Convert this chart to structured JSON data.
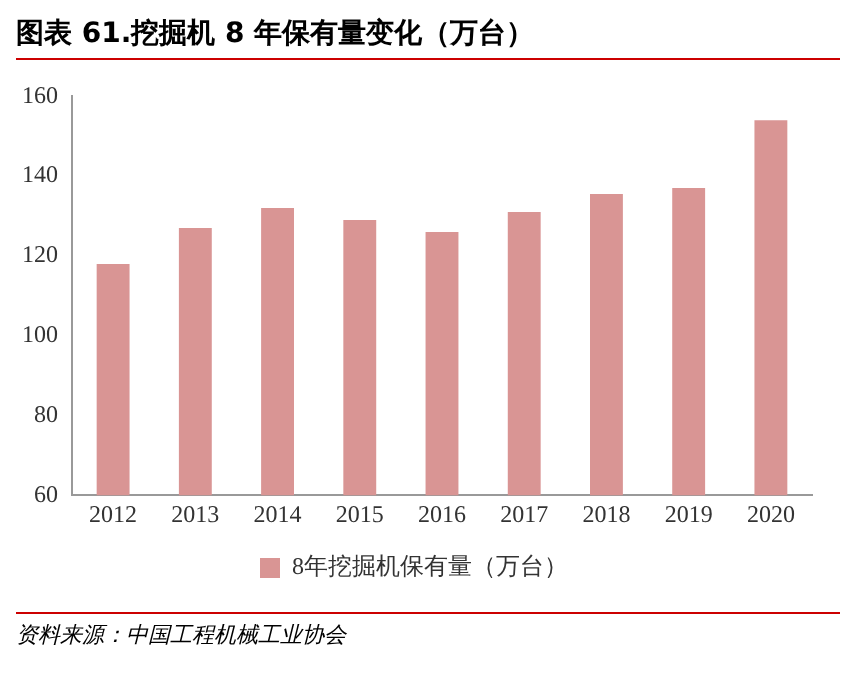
{
  "chart_data": {
    "type": "bar",
    "title": "图表 61.挖掘机 8 年保有量变化（万台）",
    "categories": [
      "2012",
      "2013",
      "2014",
      "2015",
      "2016",
      "2017",
      "2018",
      "2019",
      "2020"
    ],
    "series": [
      {
        "name": "8年挖掘机保有量（万台）",
        "color": "#d99594",
        "values": [
          118,
          127,
          132,
          129,
          126,
          131,
          135.5,
          137,
          154
        ]
      }
    ],
    "ylim": [
      60,
      160
    ],
    "yticks": [
      60,
      80,
      100,
      120,
      140,
      160
    ],
    "grid": false,
    "legend": "bottom",
    "annotations": [
      "资料来源：中国工程机械工业协会"
    ]
  }
}
